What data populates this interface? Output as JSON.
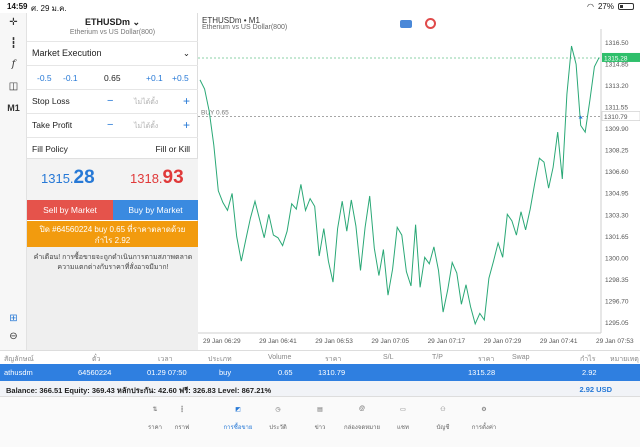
{
  "status_bar": {
    "time": "14:59",
    "date": "ศ. 29 ม.ค.",
    "battery": "27%"
  },
  "panel": {
    "symbol": "ETHUSDm",
    "symbol_desc": "Etherium vs US Dollar(800)",
    "execution": "Market Execution",
    "volume": {
      "minus_big": "-0.5",
      "minus_small": "-0.1",
      "value": "0.65",
      "plus_small": "+0.1",
      "plus_big": "+0.5"
    },
    "stop_loss": {
      "label": "Stop Loss",
      "minus": "−",
      "value": "ไม่ได้ตั้ง",
      "plus": "+"
    },
    "take_profit": {
      "label": "Take Profit",
      "minus": "−",
      "value": "ไม่ได้ตั้ง",
      "plus": "+"
    },
    "fill_policy": {
      "label": "Fill Policy",
      "value": "Fill or Kill"
    },
    "bid": {
      "main": "1315.",
      "big": "28"
    },
    "ask": {
      "main": "1318.",
      "big": "93"
    },
    "sell_label": "Sell by Market",
    "buy_label": "Buy by Market",
    "close_line1": "ปิด #64560224 buy 0.65 ที่ราคาตลาดด้วย",
    "close_line2": "กำไร 2.92",
    "warning": "คำเตือน! การซื้อขายจะถูกดำเนินการตามสภาพตลาด ความแตกต่างกับราคาที่สั่งอาจมีมาก!"
  },
  "chart": {
    "symbol": "ETHUSDm • M1",
    "desc": "Etherium vs US Dollar(800)",
    "position_label": "BUY 0.65",
    "bid_label": "1315.28",
    "entry_label": "1310.79"
  },
  "chart_data": {
    "type": "line",
    "y_ticks": [
      "1316.50",
      "1314.85",
      "1313.20",
      "1311.55",
      "1309.90",
      "1308.25",
      "1306.60",
      "1304.95",
      "1303.30",
      "1301.65",
      "1300.00",
      "1298.35",
      "1296.70",
      "1295.05"
    ],
    "x_ticks": [
      "29 Jan 06:29",
      "29 Jan 06:41",
      "29 Jan 06:53",
      "29 Jan 07:05",
      "29 Jan 07:17",
      "29 Jan 07:29",
      "29 Jan 07:41",
      "29 Jan 07:53"
    ],
    "ylim": [
      1294.2,
      1317.5
    ],
    "values": [
      1313.6,
      1312.9,
      1311.2,
      1308.6,
      1305.1,
      1304.2,
      1303.6,
      1304.9,
      1301.6,
      1299.7,
      1301.4,
      1303.0,
      1304.3,
      1302.9,
      1301.5,
      1303.3,
      1301.7,
      1301.5,
      1300.9,
      1302.0,
      1304.1,
      1303.7,
      1305.6,
      1303.6,
      1304.5,
      1303.9,
      1300.1,
      1302.2,
      1299.7,
      1298.1,
      1302.2,
      1304.3,
      1302.0,
      1304.4,
      1302.4,
      1299.0,
      1302.3,
      1304.7,
      1300.7,
      1298.6,
      1300.6,
      1297.1,
      1299.1,
      1302.3,
      1301.7,
      1298.9,
      1297.8,
      1302.5,
      1297.7,
      1300.0,
      1299.5,
      1300.8,
      1299.0,
      1295.8,
      1297.5,
      1299.6,
      1298.8,
      1296.4,
      1297.9,
      1296.2,
      1294.9,
      1295.7,
      1295.2,
      1298.4,
      1299.7,
      1301.1,
      1300.0,
      1303.3,
      1302.8,
      1301.7,
      1303.5,
      1302.1,
      1303.7,
      1305.7,
      1307.6,
      1307.3,
      1305.3,
      1306.9,
      1309.6,
      1306.0,
      1312.5,
      1316.2,
      1314.8,
      1310.1,
      1309.6,
      1312.0,
      1314.6,
      1315.3
    ],
    "position_price": 1310.79,
    "current_price": 1315.28
  },
  "table": {
    "headers": [
      "สัญลักษณ์",
      "ตั๋ว",
      "เวลา",
      "ประเภท",
      "Volume",
      "ราคา",
      "S/L",
      "T/P",
      "ราคา",
      "Swap",
      "กำไร",
      "หมายเหตุ"
    ],
    "row": {
      "symbol": "athusdm",
      "ticket": "64560224",
      "time": "01.29 07:50",
      "type": "buy",
      "volume": "0.65",
      "price": "1310.79",
      "current": "1315.28",
      "profit": "2.92"
    }
  },
  "balance": {
    "text": "Balance: 366.51  Equity: 369.43  หลักประกัน: 42.60  ฟรี: 326.83  Level: 867.21%",
    "pnl": "2.92  USD"
  },
  "nav": [
    "ราคา",
    "กราฟ",
    "การซื้อขาย",
    "ประวัติ",
    "ข่าว",
    "กล่องจดหมาย",
    "แชท",
    "บัญชี",
    "การตั้งค่า"
  ]
}
